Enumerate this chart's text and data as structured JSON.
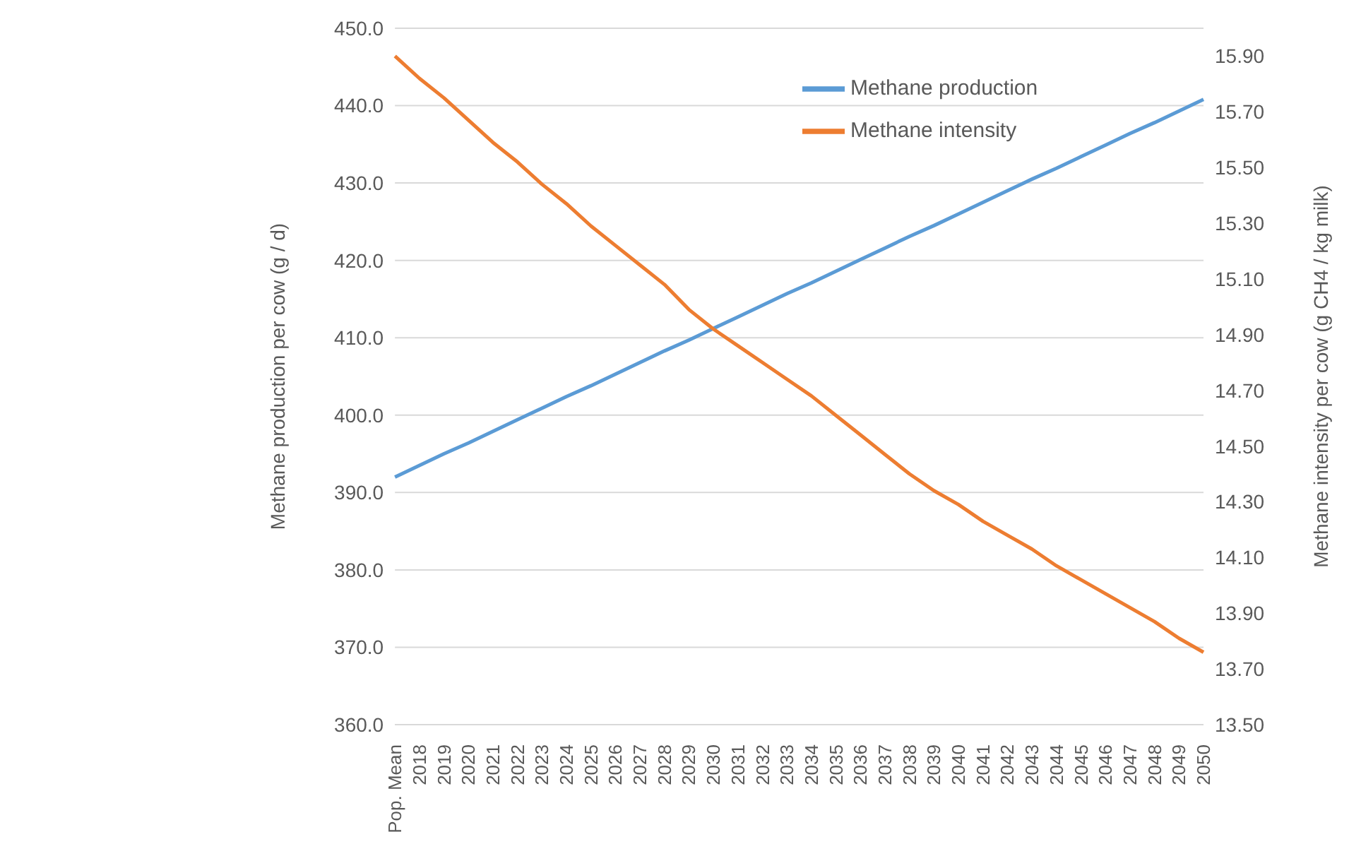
{
  "chart_data": {
    "type": "line",
    "xlabel": null,
    "ylabel": "Methane production per cow (g / d)",
    "y2label": "Methane intensity per cow (g CH4 / kg milk)",
    "categories": [
      "Pop. Mean",
      "2018",
      "2019",
      "2020",
      "2021",
      "2022",
      "2023",
      "2024",
      "2025",
      "2026",
      "2027",
      "2028",
      "2029",
      "2030",
      "2031",
      "2032",
      "2033",
      "2034",
      "2035",
      "2036",
      "2037",
      "2038",
      "2039",
      "2040",
      "2041",
      "2042",
      "2043",
      "2044",
      "2045",
      "2046",
      "2047",
      "2048",
      "2049",
      "2050"
    ],
    "series": [
      {
        "name": "Methane production",
        "color": "#5b9bd5",
        "values": [
          392.0,
          393.5,
          395.0,
          396.4,
          397.9,
          399.4,
          400.9,
          402.4,
          403.8,
          405.3,
          406.8,
          408.3,
          409.7,
          411.2,
          412.7,
          414.2,
          415.7,
          417.1,
          418.6,
          420.1,
          421.6,
          423.1,
          424.5,
          426.0,
          427.5,
          429.0,
          430.5,
          431.9,
          433.4,
          434.9,
          436.4,
          437.8,
          439.3,
          440.8
        ]
      },
      {
        "name": "Methane intensity",
        "color": "#ed7d31",
        "axis": "y2",
        "values": [
          15.9,
          15.82,
          15.75,
          15.67,
          15.59,
          15.52,
          15.44,
          15.37,
          15.29,
          15.22,
          15.15,
          15.08,
          14.99,
          14.92,
          14.86,
          14.8,
          14.74,
          14.68,
          14.61,
          14.54,
          14.47,
          14.4,
          14.34,
          14.29,
          14.23,
          14.18,
          14.13,
          14.07,
          14.02,
          13.97,
          13.92,
          13.87,
          13.81,
          13.76
        ]
      }
    ],
    "ylim": [
      360,
      450
    ],
    "yticks": [
      {
        "value": 360,
        "label": "360.0"
      },
      {
        "value": 370,
        "label": "370.0"
      },
      {
        "value": 380,
        "label": "380.0"
      },
      {
        "value": 390,
        "label": "390.0"
      },
      {
        "value": 400,
        "label": "400.0"
      },
      {
        "value": 410,
        "label": "410.0"
      },
      {
        "value": 420,
        "label": "420.0"
      },
      {
        "value": 430,
        "label": "430.0"
      },
      {
        "value": 440,
        "label": "440.0"
      },
      {
        "value": 450,
        "label": "450.0"
      }
    ],
    "y2lim": [
      13.5,
      16.0
    ],
    "y2ticks": [
      {
        "value": 13.5,
        "label": "13.50"
      },
      {
        "value": 13.7,
        "label": "13.70"
      },
      {
        "value": 13.9,
        "label": "13.90"
      },
      {
        "value": 14.1,
        "label": "14.10"
      },
      {
        "value": 14.3,
        "label": "14.30"
      },
      {
        "value": 14.5,
        "label": "14.50"
      },
      {
        "value": 14.7,
        "label": "14.70"
      },
      {
        "value": 14.9,
        "label": "14.90"
      },
      {
        "value": 15.1,
        "label": "15.10"
      },
      {
        "value": 15.3,
        "label": "15.30"
      },
      {
        "value": 15.5,
        "label": "15.50"
      },
      {
        "value": 15.7,
        "label": "15.70"
      },
      {
        "value": 15.9,
        "label": "15.90"
      }
    ],
    "grid": "y",
    "legend": "top right",
    "marker": "none",
    "line_style": "solid"
  }
}
